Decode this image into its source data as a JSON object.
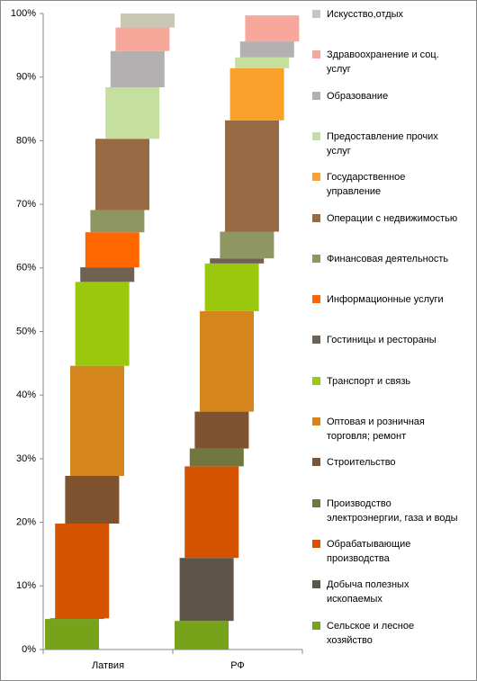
{
  "chart_data": {
    "type": "stacked-bar",
    "categories": [
      "Латвия",
      "РФ"
    ],
    "ylim": [
      0,
      100
    ],
    "yticks": [
      {
        "value": 0,
        "label": "0%"
      },
      {
        "value": 10,
        "label": "10%"
      },
      {
        "value": 20,
        "label": "20%"
      },
      {
        "value": 30,
        "label": "30%"
      },
      {
        "value": 40,
        "label": "40%"
      },
      {
        "value": 50,
        "label": "50%"
      },
      {
        "value": 60,
        "label": "60%"
      },
      {
        "value": 70,
        "label": "70%"
      },
      {
        "value": 80,
        "label": "80%"
      },
      {
        "value": 90,
        "label": "90%"
      },
      {
        "value": 100,
        "label": "100%"
      }
    ],
    "series": [
      {
        "name": "Сельское и лесное хозяйство",
        "color": "#77a31a",
        "values": [
          4.8,
          4.5
        ]
      },
      {
        "name": "Добыча полезных ископаемых",
        "color": "#5e5447",
        "values": [
          0.1,
          9.9
        ]
      },
      {
        "name": "Обрабатывающие производства",
        "color": "#d65400",
        "values": [
          14.9,
          14.4
        ]
      },
      {
        "name": "Производство электроэнергии, газа и воды",
        "color": "#71783f",
        "values": [
          0,
          2.8
        ]
      },
      {
        "name": "Строительство",
        "color": "#7f5230",
        "values": [
          7.5,
          5.8
        ]
      },
      {
        "name": "Оптовая и розничная торговля; ремонт",
        "color": "#d4861c",
        "values": [
          17.3,
          15.8
        ]
      },
      {
        "name": "Транспорт и связь",
        "color": "#99c80d",
        "values": [
          13.2,
          7.5
        ]
      },
      {
        "name": "Гостиницы и рестораны",
        "color": "#6e6252",
        "values": [
          2.3,
          0.8
        ]
      },
      {
        "name": "Информационные услуги",
        "color": "#ff6600",
        "values": [
          5.5,
          0
        ]
      },
      {
        "name": "Финансовая деятельность",
        "color": "#8e9661",
        "values": [
          3.5,
          4.2
        ]
      },
      {
        "name": "Операции с недвижимостью",
        "color": "#986a44",
        "values": [
          11.2,
          17.5
        ]
      },
      {
        "name": "Государственное управление",
        "color": "#f9a12b",
        "values": [
          0,
          8.2
        ]
      },
      {
        "name": "Предоставление прочих услуг",
        "color": "#c5df9f",
        "values": [
          8.1,
          1.7
        ]
      },
      {
        "name": "Образование",
        "color": "#b2b0b0",
        "values": [
          5.7,
          2.5
        ]
      },
      {
        "name": "Здравоохранение и соц. услуг",
        "color": "#f8a89a",
        "values": [
          3.7,
          4.1
        ]
      },
      {
        "name": "Искусство,отдых",
        "color": "#c8c8b4",
        "values": [
          2.2,
          0
        ]
      }
    ]
  }
}
